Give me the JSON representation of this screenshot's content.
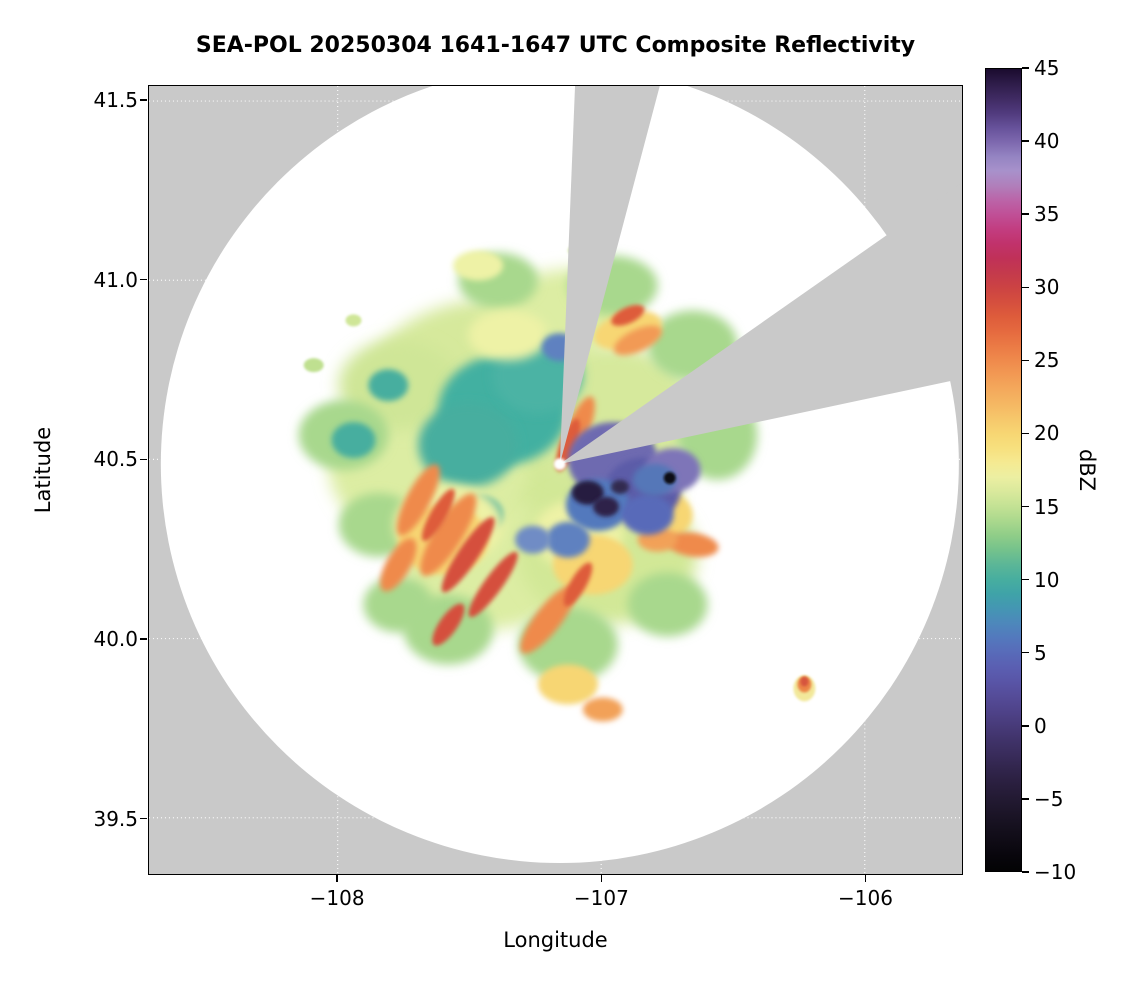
{
  "title": "SEA-POL 20250304 1641-1647 UTC Composite Reflectivity",
  "axes": {
    "xlabel": "Longitude",
    "ylabel": "Latitude",
    "x_ticks": [
      {
        "value": -108,
        "label": "−108"
      },
      {
        "value": -107,
        "label": "−107"
      },
      {
        "value": -106,
        "label": "−106"
      }
    ],
    "y_ticks": [
      {
        "value": 41.5,
        "label": "41.5"
      },
      {
        "value": 41.0,
        "label": "41.0"
      },
      {
        "value": 40.5,
        "label": "40.5"
      },
      {
        "value": 40.0,
        "label": "40.0"
      },
      {
        "value": 39.5,
        "label": "39.5"
      }
    ]
  },
  "colorbar": {
    "label": "dBZ",
    "min": -10,
    "max": 45,
    "ticks": [
      {
        "value": 45,
        "label": "45"
      },
      {
        "value": 40,
        "label": "40"
      },
      {
        "value": 35,
        "label": "35"
      },
      {
        "value": 30,
        "label": "30"
      },
      {
        "value": 25,
        "label": "25"
      },
      {
        "value": 20,
        "label": "20"
      },
      {
        "value": 15,
        "label": "15"
      },
      {
        "value": 10,
        "label": "10"
      },
      {
        "value": 5,
        "label": "5"
      },
      {
        "value": 0,
        "label": "0"
      },
      {
        "value": -5,
        "label": "−5"
      },
      {
        "value": -10,
        "label": "−10"
      }
    ],
    "stops": [
      [
        45,
        "#1a0b2e"
      ],
      [
        44,
        "#2e1c49"
      ],
      [
        43,
        "#3f2a62"
      ],
      [
        42,
        "#503a7d"
      ],
      [
        41,
        "#66519a"
      ],
      [
        40,
        "#7d68ae"
      ],
      [
        39,
        "#9484c2"
      ],
      [
        38,
        "#a891cb"
      ],
      [
        37,
        "#b07fbb"
      ],
      [
        36,
        "#bb64a8"
      ],
      [
        35,
        "#c04f96"
      ],
      [
        34,
        "#c23d80"
      ],
      [
        33,
        "#c1326b"
      ],
      [
        32,
        "#c03158"
      ],
      [
        31,
        "#c43a4c"
      ],
      [
        30,
        "#cc4343"
      ],
      [
        29,
        "#d54f3e"
      ],
      [
        28,
        "#de5c3b"
      ],
      [
        27,
        "#e56a3f"
      ],
      [
        26,
        "#eb7a45"
      ],
      [
        25,
        "#ef8a4c"
      ],
      [
        24,
        "#f29a54"
      ],
      [
        23,
        "#f4a95c"
      ],
      [
        22,
        "#f5b863"
      ],
      [
        21,
        "#f6c76b"
      ],
      [
        20,
        "#f7d673"
      ],
      [
        19,
        "#f7e07e"
      ],
      [
        18,
        "#f5ea92"
      ],
      [
        17,
        "#ecefa2"
      ],
      [
        16,
        "#d9e99c"
      ],
      [
        15,
        "#c3e294"
      ],
      [
        14,
        "#aad88d"
      ],
      [
        13,
        "#8fcd88"
      ],
      [
        12,
        "#74c28c"
      ],
      [
        11,
        "#5bb697"
      ],
      [
        10,
        "#47ae9f"
      ],
      [
        9,
        "#3fa3a8"
      ],
      [
        8,
        "#4496b3"
      ],
      [
        7,
        "#4d88bb"
      ],
      [
        6,
        "#5379bd"
      ],
      [
        5,
        "#586bb9"
      ],
      [
        4,
        "#5a5fb2"
      ],
      [
        3,
        "#5955a7"
      ],
      [
        2,
        "#554c99"
      ],
      [
        1,
        "#4f438a"
      ],
      [
        0,
        "#483b7a"
      ],
      [
        -1,
        "#40336a"
      ],
      [
        -2,
        "#392c5b"
      ],
      [
        -3,
        "#31254c"
      ],
      [
        -4,
        "#2a1f3f"
      ],
      [
        -5,
        "#231a33"
      ],
      [
        -6,
        "#1c1528"
      ],
      [
        -7,
        "#15101e"
      ],
      [
        -8,
        "#0f0b15"
      ],
      [
        -9,
        "#08060c"
      ],
      [
        -10,
        "#030304"
      ]
    ]
  },
  "chart_data": {
    "type": "heatmap",
    "title": "SEA-POL 20250304 1641-1647 UTC Composite Reflectivity",
    "xlabel": "Longitude",
    "ylabel": "Latitude",
    "xlim": [
      -108.716,
      -105.631
    ],
    "ylim": [
      39.343,
      41.542
    ],
    "x_ticks": [
      -108,
      -107,
      -106
    ],
    "y_ticks": [
      41.5,
      41.0,
      40.5,
      40.0,
      39.5
    ],
    "colorbar": {
      "label": "dBZ",
      "range": [
        -10,
        45
      ],
      "tick_step": 5,
      "orientation": "vertical-right"
    },
    "grid": {
      "visible": true,
      "style": "dotted",
      "color": "#ffffff"
    },
    "background": {
      "outside_range": "#c9c9c9",
      "inside_range": "#ffffff"
    },
    "radar": {
      "lon": -107.157,
      "lat": 40.487,
      "coverage_radius_px": 400
    },
    "blocked_sectors": [
      {
        "az_from_deg": 2.3,
        "az_to_deg": 14.8
      },
      {
        "az_from_deg": 55,
        "az_to_deg": 78
      }
    ],
    "description": "PPI composite reflectivity. Grey = outside radar range or beam-blocked sectors; white disk = coverage with no echo. A ~1-degree-wide precipitation shield (mostly 10-20 dBZ) surrounds the radar at (-107.16, 40.49): smooth 8-12 dBZ stratiform area to the NW, convective 25-30 dBZ bands to the SW/S, low 0-7 dBZ (blue-purple) region with a few near -5 dBZ dark pixels just E/SE of the radar, and one small isolated 20-30 dBZ cell near (-106.23, 39.86).",
    "echoes": [
      {
        "lon": -107.467,
        "lat": 40.707,
        "dbz": 15,
        "rx": 120,
        "ry": 85,
        "rot": -10,
        "color": "#d6e99c",
        "blur": "b8"
      },
      {
        "lon": -107.24,
        "lat": 40.429,
        "dbz": 15,
        "rx": 140,
        "ry": 110,
        "rot": 0,
        "color": "#d2e897",
        "blur": "b8"
      },
      {
        "lon": -107.656,
        "lat": 40.484,
        "dbz": 16,
        "rx": 100,
        "ry": 80,
        "rot": 0,
        "color": "#dceda3",
        "blur": "b8"
      },
      {
        "lon": -106.975,
        "lat": 40.624,
        "dbz": 15,
        "rx": 90,
        "ry": 70,
        "rot": 0,
        "color": "#d6e99c",
        "blur": "b8"
      },
      {
        "lon": -107.429,
        "lat": 40.206,
        "dbz": 16,
        "rx": 90,
        "ry": 65,
        "rot": 0,
        "color": "#dceda3",
        "blur": "b8"
      },
      {
        "lon": -106.975,
        "lat": 40.234,
        "dbz": 15,
        "rx": 90,
        "ry": 70,
        "rot": 0,
        "color": "#d2e897",
        "blur": "b8"
      },
      {
        "lon": -107.164,
        "lat": 40.902,
        "dbz": 16,
        "rx": 80,
        "ry": 45,
        "rot": -10,
        "color": "#dceda3",
        "blur": "b8"
      },
      {
        "lon": -107.77,
        "lat": 40.707,
        "dbz": 15,
        "rx": 60,
        "ry": 45,
        "rot": 0,
        "color": "#cfe697",
        "blur": "b8"
      },
      {
        "lon": -107.978,
        "lat": 40.568,
        "dbz": 13,
        "rx": 45,
        "ry": 35,
        "rot": 0,
        "color": "#a8d88d",
        "blur": "b5"
      },
      {
        "lon": -107.845,
        "lat": 40.317,
        "dbz": 13,
        "rx": 40,
        "ry": 32,
        "rot": 0,
        "color": "#a8d88d",
        "blur": "b5"
      },
      {
        "lon": -107.58,
        "lat": 40.025,
        "dbz": 13,
        "rx": 45,
        "ry": 35,
        "rot": 0,
        "color": "#a8d88d",
        "blur": "b5"
      },
      {
        "lon": -107.126,
        "lat": 39.983,
        "dbz": 13,
        "rx": 50,
        "ry": 38,
        "rot": 0,
        "color": "#a8d88d",
        "blur": "b5"
      },
      {
        "lon": -106.748,
        "lat": 40.095,
        "dbz": 13,
        "rx": 40,
        "ry": 32,
        "rot": 0,
        "color": "#a8d88d",
        "blur": "b5"
      },
      {
        "lon": -106.653,
        "lat": 40.818,
        "dbz": 13,
        "rx": 45,
        "ry": 35,
        "rot": 0,
        "color": "#a8d88d",
        "blur": "b5"
      },
      {
        "lon": -106.956,
        "lat": 40.985,
        "dbz": 13,
        "rx": 45,
        "ry": 30,
        "rot": 0,
        "color": "#a8d88d",
        "blur": "b5"
      },
      {
        "lon": -107.391,
        "lat": 40.999,
        "dbz": 13,
        "rx": 40,
        "ry": 28,
        "rot": 0,
        "color": "#a8d88d",
        "blur": "b5"
      },
      {
        "lon": -106.559,
        "lat": 40.568,
        "dbz": 13,
        "rx": 40,
        "ry": 45,
        "rot": 0,
        "color": "#a8d88d",
        "blur": "b5"
      },
      {
        "lon": -107.77,
        "lat": 40.095,
        "dbz": 13,
        "rx": 35,
        "ry": 28,
        "rot": 0,
        "color": "#a8d88d",
        "blur": "b5"
      },
      {
        "lon": -107.372,
        "lat": 40.638,
        "dbz": 10,
        "rx": 65,
        "ry": 55,
        "rot": 0,
        "color": "#43b0a1",
        "blur": "b5"
      },
      {
        "lon": -107.505,
        "lat": 40.54,
        "dbz": 10,
        "rx": 50,
        "ry": 42,
        "rot": 0,
        "color": "#47ae9f",
        "blur": "b5"
      },
      {
        "lon": -107.24,
        "lat": 40.735,
        "dbz": 10,
        "rx": 45,
        "ry": 38,
        "rot": 0,
        "color": "#4bb3a4",
        "blur": "b5"
      },
      {
        "lon": -107.94,
        "lat": 40.554,
        "dbz": 10,
        "rx": 22,
        "ry": 18,
        "rot": 0,
        "color": "#47ae9f",
        "blur": "b3"
      },
      {
        "lon": -107.808,
        "lat": 40.707,
        "dbz": 10,
        "rx": 20,
        "ry": 16,
        "rot": 0,
        "color": "#47ae9f",
        "blur": "b3"
      },
      {
        "lon": -107.467,
        "lat": 40.345,
        "dbz": 10,
        "rx": 25,
        "ry": 20,
        "rot": 0,
        "color": "#47ae9f",
        "blur": "b3"
      },
      {
        "lon": -107.58,
        "lat": 40.317,
        "dbz": 17,
        "rx": 55,
        "ry": 40,
        "rot": 0,
        "color": "#eef2a6",
        "blur": "b5"
      },
      {
        "lon": -107.088,
        "lat": 40.29,
        "dbz": 17,
        "rx": 45,
        "ry": 35,
        "rot": 0,
        "color": "#eef2a6",
        "blur": "b5"
      },
      {
        "lon": -106.824,
        "lat": 40.373,
        "dbz": 17,
        "rx": 35,
        "ry": 28,
        "rot": 0,
        "color": "#eef2a6",
        "blur": "b5"
      },
      {
        "lon": -107.353,
        "lat": 40.846,
        "dbz": 17,
        "rx": 40,
        "ry": 25,
        "rot": 0,
        "color": "#eef2a6",
        "blur": "b5"
      },
      {
        "lon": -107.467,
        "lat": 41.041,
        "dbz": 17,
        "rx": 25,
        "ry": 15,
        "rot": 0,
        "color": "#eef2a6",
        "blur": "b3"
      },
      {
        "lon": -107.599,
        "lat": 40.276,
        "dbz": 20,
        "rx": 45,
        "ry": 35,
        "rot": 0,
        "color": "#f7d673",
        "blur": "b3"
      },
      {
        "lon": -107.032,
        "lat": 40.206,
        "dbz": 20,
        "rx": 40,
        "ry": 30,
        "rot": 0,
        "color": "#f7d673",
        "blur": "b3"
      },
      {
        "lon": -106.767,
        "lat": 40.345,
        "dbz": 20,
        "rx": 30,
        "ry": 24,
        "rot": 0,
        "color": "#f7d673",
        "blur": "b3"
      },
      {
        "lon": -106.899,
        "lat": 40.86,
        "dbz": 20,
        "rx": 35,
        "ry": 18,
        "rot": -15,
        "color": "#f7d673",
        "blur": "b3"
      },
      {
        "lon": -107.126,
        "lat": 39.872,
        "dbz": 20,
        "rx": 30,
        "ry": 20,
        "rot": 0,
        "color": "#f7d673",
        "blur": "b3"
      },
      {
        "lon": -107.58,
        "lat": 40.29,
        "dbz": 24,
        "rx": 14,
        "ry": 48,
        "rot": 32,
        "color": "#ef8a4c",
        "blur": "b3"
      },
      {
        "lon": -107.694,
        "lat": 40.387,
        "dbz": 24,
        "rx": 12,
        "ry": 40,
        "rot": 28,
        "color": "#ef8a4c",
        "blur": "b3"
      },
      {
        "lon": -107.202,
        "lat": 40.053,
        "dbz": 24,
        "rx": 13,
        "ry": 42,
        "rot": 38,
        "color": "#ef8a4c",
        "blur": "b3"
      },
      {
        "lon": -107.088,
        "lat": 40.582,
        "dbz": 24,
        "rx": 11,
        "ry": 36,
        "rot": 22,
        "color": "#ef8a4c",
        "blur": "b3"
      },
      {
        "lon": -106.861,
        "lat": 40.832,
        "dbz": 24,
        "rx": 26,
        "ry": 11,
        "rot": -25,
        "color": "#f29a54",
        "blur": "b3"
      },
      {
        "lon": -106.653,
        "lat": 40.262,
        "dbz": 24,
        "rx": 26,
        "ry": 12,
        "rot": 8,
        "color": "#ef8a4c",
        "blur": "b3"
      },
      {
        "lon": -106.786,
        "lat": 40.276,
        "dbz": 23,
        "rx": 20,
        "ry": 12,
        "rot": 0,
        "color": "#f2a158",
        "blur": "b3"
      },
      {
        "lon": -107.77,
        "lat": 40.206,
        "dbz": 24,
        "rx": 12,
        "ry": 30,
        "rot": 30,
        "color": "#ef8a4c",
        "blur": "b3"
      },
      {
        "lon": -106.994,
        "lat": 39.802,
        "dbz": 23,
        "rx": 20,
        "ry": 12,
        "rot": 0,
        "color": "#f2a158",
        "blur": "b3"
      },
      {
        "lon": -107.505,
        "lat": 40.234,
        "dbz": 29,
        "rx": 10,
        "ry": 45,
        "rot": 34,
        "color": "#d54f3e",
        "blur": "b2"
      },
      {
        "lon": -107.41,
        "lat": 40.151,
        "dbz": 29,
        "rx": 9,
        "ry": 40,
        "rot": 36,
        "color": "#d54f3e",
        "blur": "b2"
      },
      {
        "lon": -107.618,
        "lat": 40.345,
        "dbz": 28,
        "rx": 8,
        "ry": 30,
        "rot": 30,
        "color": "#de5c3b",
        "blur": "b2"
      },
      {
        "lon": -107.126,
        "lat": 40.54,
        "dbz": 28,
        "rx": 8,
        "ry": 28,
        "rot": 20,
        "color": "#de5c3b",
        "blur": "b2"
      },
      {
        "lon": -107.58,
        "lat": 40.039,
        "dbz": 29,
        "rx": 9,
        "ry": 25,
        "rot": 35,
        "color": "#d54f3e",
        "blur": "b2"
      },
      {
        "lon": -106.899,
        "lat": 40.902,
        "dbz": 28,
        "rx": 18,
        "ry": 8,
        "rot": -25,
        "color": "#de5c3b",
        "blur": "b2"
      },
      {
        "lon": -107.088,
        "lat": 40.151,
        "dbz": 28,
        "rx": 8,
        "ry": 25,
        "rot": 30,
        "color": "#de5c3b",
        "blur": "b2"
      },
      {
        "lon": -106.956,
        "lat": 40.498,
        "dbz": 3,
        "rx": 45,
        "ry": 38,
        "rot": 0,
        "color": "#6e6ab0",
        "blur": "b3"
      },
      {
        "lon": -106.842,
        "lat": 40.415,
        "dbz": 2,
        "rx": 38,
        "ry": 32,
        "rot": 0,
        "color": "#5c5ca8",
        "blur": "b3"
      },
      {
        "lon": -107.013,
        "lat": 40.373,
        "dbz": 6,
        "rx": 32,
        "ry": 26,
        "rot": 0,
        "color": "#5379bd",
        "blur": "b3"
      },
      {
        "lon": -106.729,
        "lat": 40.47,
        "dbz": 4,
        "rx": 28,
        "ry": 22,
        "rot": 0,
        "color": "#7e74b8",
        "blur": "b3"
      },
      {
        "lon": -106.824,
        "lat": 40.345,
        "dbz": 5,
        "rx": 26,
        "ry": 20,
        "rot": 0,
        "color": "#586bb9",
        "blur": "b3"
      },
      {
        "lon": -107.126,
        "lat": 40.276,
        "dbz": 6,
        "rx": 22,
        "ry": 18,
        "rot": 0,
        "color": "#5e81c0",
        "blur": "b3"
      },
      {
        "lon": -107.259,
        "lat": 40.276,
        "dbz": 7,
        "rx": 18,
        "ry": 14,
        "rot": 0,
        "color": "#6f8cc5",
        "blur": "b3"
      },
      {
        "lon": -107.157,
        "lat": 40.813,
        "dbz": 6,
        "rx": 18,
        "ry": 14,
        "rot": 0,
        "color": "#5e81c0",
        "blur": "b3"
      },
      {
        "lon": -106.797,
        "lat": 40.443,
        "dbz": 5,
        "rx": 22,
        "ry": 16,
        "rot": 0,
        "color": "#5577b8",
        "blur": "b3"
      },
      {
        "lon": -106.929,
        "lat": 40.562,
        "dbz": 4,
        "rx": 16,
        "ry": 12,
        "rot": 0,
        "color": "#7a70b5",
        "blur": "b2"
      },
      {
        "lon": -107.051,
        "lat": 40.407,
        "dbz": -5,
        "rx": 16,
        "ry": 12,
        "rot": 0,
        "color": "#261d40",
        "blur": "b2"
      },
      {
        "lon": -106.982,
        "lat": 40.368,
        "dbz": -5,
        "rx": 13,
        "ry": 10,
        "rot": 0,
        "color": "#2d2348",
        "blur": "b2"
      },
      {
        "lon": -106.929,
        "lat": 40.423,
        "dbz": -4,
        "rx": 9,
        "ry": 7,
        "rot": 0,
        "color": "#332a50",
        "blur": "b2"
      },
      {
        "lon": -106.74,
        "lat": 40.448,
        "dbz": -9,
        "rx": 6,
        "ry": 6,
        "rot": 0,
        "color": "#0d0d14",
        "blur": "b1"
      },
      {
        "lon": -108.091,
        "lat": 40.763,
        "dbz": 13,
        "rx": 10,
        "ry": 7,
        "rot": 0,
        "color": "#bfe090",
        "blur": "b1"
      },
      {
        "lon": -107.94,
        "lat": 40.888,
        "dbz": 13,
        "rx": 8,
        "ry": 6,
        "rot": 0,
        "color": "#cfe697",
        "blur": "b1"
      },
      {
        "lon": -107.088,
        "lat": 41.083,
        "dbz": 14,
        "rx": 10,
        "ry": 6,
        "rot": 0,
        "color": "#cfe697",
        "blur": "b1"
      },
      {
        "lon": -106.229,
        "lat": 39.861,
        "dbz": 17,
        "rx": 11,
        "ry": 13,
        "rot": 0,
        "color": "#f2e89a",
        "blur": "b1"
      },
      {
        "lon": -106.229,
        "lat": 39.872,
        "dbz": 25,
        "rx": 7,
        "ry": 8,
        "rot": 0,
        "color": "#ec8646",
        "blur": "b1"
      },
      {
        "lon": -106.229,
        "lat": 39.88,
        "dbz": 29,
        "rx": 4,
        "ry": 5,
        "rot": 0,
        "color": "#d6543e",
        "blur": "b1"
      }
    ]
  }
}
